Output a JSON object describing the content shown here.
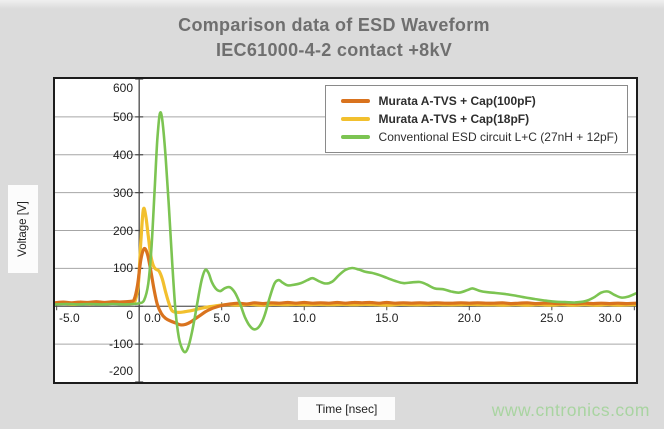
{
  "title": {
    "line1": "Comparison data of ESD Waveform",
    "line2": "IEC61000-4-2 contact +8kV"
  },
  "watermark": "www.cntronics.com",
  "watermark_color": "#a9d4a1",
  "chart_data": {
    "type": "line",
    "title": "Comparison data of ESD Waveform IEC61000-4-2 contact +8kV",
    "xlabel": "Time [nsec]",
    "ylabel": "Voltage [V]",
    "xlim": [
      -5.1,
      30.1
    ],
    "ylim": [
      -200,
      600
    ],
    "grid": true,
    "grid_color": "#a6a6a6",
    "axis_color": "#4a4a4a",
    "legend_position": "top-right",
    "x_ticks": [
      -5,
      0,
      5,
      10,
      15,
      20,
      25,
      30
    ],
    "x_tick_labels": [
      "-5.0",
      "0.0",
      "5.0",
      "10.0",
      "15.0",
      "20.0",
      "25.0",
      "30.0"
    ],
    "y_ticks": [
      600,
      500,
      400,
      300,
      200,
      100,
      0,
      -100,
      -200
    ],
    "y_tick_labels": [
      "600",
      "500",
      "400",
      "300",
      "200",
      "100",
      "0",
      "-100",
      "-200"
    ],
    "draw_order": [
      1,
      0,
      2
    ],
    "series": [
      {
        "name": "Murata A-TVS + Cap(100pF)",
        "color": "#d9731e",
        "width": 3.2,
        "bold_legend": true,
        "points": [
          [
            -5.1,
            9
          ],
          [
            -4.6,
            11
          ],
          [
            -4.1,
            9
          ],
          [
            -3.6,
            11
          ],
          [
            -3.1,
            10
          ],
          [
            -2.6,
            12
          ],
          [
            -2.1,
            10
          ],
          [
            -1.6,
            12
          ],
          [
            -1.2,
            11
          ],
          [
            -0.8,
            12
          ],
          [
            -0.5,
            13
          ],
          [
            -0.3,
            18
          ],
          [
            -0.1,
            55
          ],
          [
            0.1,
            122
          ],
          [
            0.3,
            152
          ],
          [
            0.5,
            138
          ],
          [
            0.7,
            95
          ],
          [
            0.9,
            45
          ],
          [
            1.1,
            5
          ],
          [
            1.35,
            -20
          ],
          [
            1.6,
            -32
          ],
          [
            1.9,
            -39
          ],
          [
            2.2,
            -44
          ],
          [
            2.5,
            -49
          ],
          [
            2.8,
            -48
          ],
          [
            3.1,
            -42
          ],
          [
            3.4,
            -33
          ],
          [
            3.7,
            -24
          ],
          [
            4.0,
            -15
          ],
          [
            4.3,
            -8
          ],
          [
            4.6,
            -3
          ],
          [
            5.0,
            2
          ],
          [
            5.5,
            6
          ],
          [
            6.0,
            8
          ],
          [
            6.5,
            6
          ],
          [
            7.0,
            9
          ],
          [
            7.5,
            7
          ],
          [
            8.0,
            9
          ],
          [
            8.5,
            8
          ],
          [
            9.0,
            10
          ],
          [
            9.5,
            8
          ],
          [
            10.0,
            10
          ],
          [
            10.5,
            8
          ],
          [
            11.0,
            9
          ],
          [
            11.5,
            8
          ],
          [
            12.0,
            10
          ],
          [
            12.5,
            8
          ],
          [
            13.0,
            10
          ],
          [
            13.5,
            9
          ],
          [
            14.0,
            10
          ],
          [
            14.5,
            8
          ],
          [
            15.0,
            10
          ],
          [
            15.5,
            8
          ],
          [
            16.0,
            9
          ],
          [
            16.5,
            8
          ],
          [
            17.0,
            9
          ],
          [
            17.5,
            8
          ],
          [
            18.0,
            9
          ],
          [
            18.5,
            8
          ],
          [
            19.0,
            8
          ],
          [
            19.5,
            9
          ],
          [
            20.0,
            8
          ],
          [
            20.5,
            9
          ],
          [
            21.0,
            8
          ],
          [
            21.5,
            8
          ],
          [
            22.0,
            9
          ],
          [
            22.5,
            7
          ],
          [
            23.0,
            8
          ],
          [
            23.5,
            9
          ],
          [
            24.0,
            7
          ],
          [
            24.5,
            8
          ],
          [
            25.0,
            8
          ],
          [
            25.5,
            7
          ],
          [
            26.0,
            8
          ],
          [
            26.5,
            7
          ],
          [
            27.0,
            8
          ],
          [
            27.5,
            7
          ],
          [
            28.0,
            8
          ],
          [
            28.5,
            7
          ],
          [
            29.0,
            8
          ],
          [
            29.5,
            7
          ],
          [
            30.1,
            8
          ]
        ]
      },
      {
        "name": "Murata A-TVS + Cap(18pF)",
        "color": "#f2c02e",
        "width": 3.2,
        "bold_legend": true,
        "points": [
          [
            -5.1,
            6
          ],
          [
            -4.5,
            7
          ],
          [
            -4.0,
            5
          ],
          [
            -3.5,
            7
          ],
          [
            -3.0,
            6
          ],
          [
            -2.5,
            8
          ],
          [
            -2.0,
            6
          ],
          [
            -1.6,
            8
          ],
          [
            -1.2,
            7
          ],
          [
            -0.8,
            8
          ],
          [
            -0.5,
            9
          ],
          [
            -0.25,
            14
          ],
          [
            -0.05,
            60
          ],
          [
            0.1,
            170
          ],
          [
            0.25,
            255
          ],
          [
            0.4,
            238
          ],
          [
            0.55,
            185
          ],
          [
            0.7,
            135
          ],
          [
            0.85,
            108
          ],
          [
            1.0,
            98
          ],
          [
            1.2,
            93
          ],
          [
            1.4,
            72
          ],
          [
            1.6,
            38
          ],
          [
            1.8,
            8
          ],
          [
            2.0,
            -12
          ],
          [
            2.3,
            -16
          ],
          [
            2.7,
            -15
          ],
          [
            3.1,
            -12
          ],
          [
            3.5,
            -8
          ],
          [
            3.9,
            -4
          ],
          [
            4.3,
            -1
          ],
          [
            4.8,
            2
          ],
          [
            5.3,
            4
          ],
          [
            6.0,
            3
          ],
          [
            6.7,
            5
          ],
          [
            7.4,
            3
          ],
          [
            8.1,
            5
          ],
          [
            8.8,
            4
          ],
          [
            9.5,
            5
          ],
          [
            10.2,
            4
          ],
          [
            10.9,
            5
          ],
          [
            11.6,
            4
          ],
          [
            12.3,
            5
          ],
          [
            13.0,
            4
          ],
          [
            13.7,
            5
          ],
          [
            14.4,
            4
          ],
          [
            15.1,
            3
          ],
          [
            15.8,
            5
          ],
          [
            16.5,
            4
          ],
          [
            17.2,
            4
          ],
          [
            17.9,
            5
          ],
          [
            18.6,
            4
          ],
          [
            19.3,
            4
          ],
          [
            20.0,
            5
          ],
          [
            20.7,
            4
          ],
          [
            21.4,
            4
          ],
          [
            22.1,
            3
          ],
          [
            22.8,
            4
          ],
          [
            23.5,
            3
          ],
          [
            24.2,
            4
          ],
          [
            24.9,
            3
          ],
          [
            25.6,
            4
          ],
          [
            26.3,
            3
          ],
          [
            27.0,
            4
          ],
          [
            27.7,
            3
          ],
          [
            28.4,
            4
          ],
          [
            29.1,
            3
          ],
          [
            30.1,
            4
          ]
        ]
      },
      {
        "name": "Conventional ESD circuit L+C (27nH + 12pF)",
        "color": "#7cc452",
        "width": 2.6,
        "bold_legend": false,
        "points": [
          [
            -5.1,
            5
          ],
          [
            -4.4,
            6
          ],
          [
            -3.7,
            5
          ],
          [
            -3.0,
            6
          ],
          [
            -2.3,
            5
          ],
          [
            -1.6,
            6
          ],
          [
            -0.9,
            5
          ],
          [
            -0.4,
            6
          ],
          [
            0.0,
            8
          ],
          [
            0.3,
            16
          ],
          [
            0.55,
            60
          ],
          [
            0.75,
            160
          ],
          [
            0.95,
            320
          ],
          [
            1.1,
            440
          ],
          [
            1.25,
            508
          ],
          [
            1.4,
            492
          ],
          [
            1.6,
            395
          ],
          [
            1.8,
            262
          ],
          [
            2.0,
            115
          ],
          [
            2.2,
            -12
          ],
          [
            2.4,
            -82
          ],
          [
            2.6,
            -112
          ],
          [
            2.8,
            -121
          ],
          [
            3.0,
            -104
          ],
          [
            3.2,
            -68
          ],
          [
            3.4,
            -22
          ],
          [
            3.6,
            28
          ],
          [
            3.8,
            72
          ],
          [
            4.0,
            96
          ],
          [
            4.2,
            88
          ],
          [
            4.4,
            64
          ],
          [
            4.65,
            46
          ],
          [
            4.9,
            40
          ],
          [
            5.2,
            48
          ],
          [
            5.5,
            50
          ],
          [
            5.8,
            36
          ],
          [
            6.1,
            8
          ],
          [
            6.4,
            -28
          ],
          [
            6.7,
            -52
          ],
          [
            7.0,
            -61
          ],
          [
            7.3,
            -52
          ],
          [
            7.6,
            -24
          ],
          [
            7.9,
            22
          ],
          [
            8.2,
            60
          ],
          [
            8.45,
            69
          ],
          [
            8.7,
            62
          ],
          [
            9.0,
            55
          ],
          [
            9.4,
            57
          ],
          [
            9.8,
            61
          ],
          [
            10.2,
            69
          ],
          [
            10.5,
            74
          ],
          [
            10.9,
            66
          ],
          [
            11.3,
            60
          ],
          [
            11.7,
            65
          ],
          [
            12.1,
            82
          ],
          [
            12.5,
            96
          ],
          [
            12.9,
            101
          ],
          [
            13.3,
            97
          ],
          [
            13.7,
            91
          ],
          [
            14.1,
            88
          ],
          [
            14.5,
            83
          ],
          [
            15.0,
            75
          ],
          [
            15.5,
            67
          ],
          [
            16.0,
            61
          ],
          [
            16.5,
            63
          ],
          [
            17.0,
            64
          ],
          [
            17.4,
            58
          ],
          [
            17.9,
            47
          ],
          [
            18.4,
            45
          ],
          [
            18.9,
            39
          ],
          [
            19.4,
            36
          ],
          [
            19.9,
            43
          ],
          [
            20.2,
            47
          ],
          [
            20.6,
            41
          ],
          [
            21.1,
            37
          ],
          [
            21.6,
            35
          ],
          [
            22.2,
            32
          ],
          [
            22.8,
            28
          ],
          [
            23.4,
            23
          ],
          [
            24.0,
            19
          ],
          [
            24.6,
            15
          ],
          [
            25.2,
            12
          ],
          [
            25.8,
            11
          ],
          [
            26.4,
            10
          ],
          [
            27.0,
            13
          ],
          [
            27.5,
            22
          ],
          [
            28.0,
            36
          ],
          [
            28.4,
            39
          ],
          [
            28.8,
            30
          ],
          [
            29.2,
            23
          ],
          [
            29.6,
            25
          ],
          [
            30.1,
            34
          ]
        ]
      }
    ]
  }
}
